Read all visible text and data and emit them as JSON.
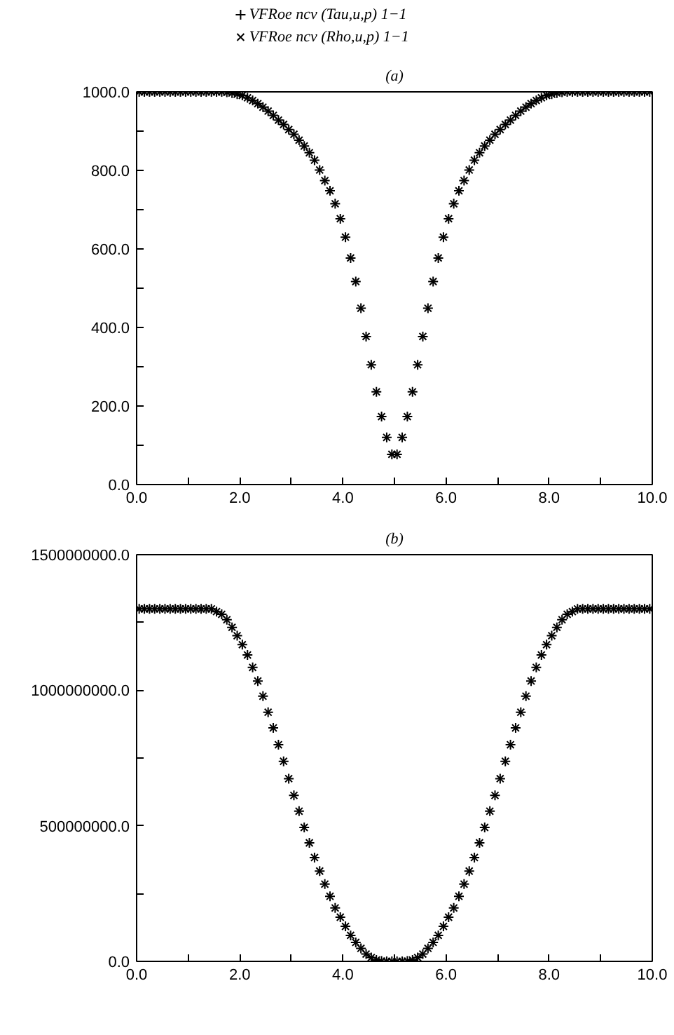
{
  "chart_data": [
    {
      "type": "scatter",
      "title": "(a)",
      "legend": "top left",
      "grid": false,
      "x": [
        0.05,
        0.15,
        0.25,
        0.35,
        0.45,
        0.55,
        0.65,
        0.75,
        0.85,
        0.95,
        1.05,
        1.15,
        1.25,
        1.35,
        1.45,
        1.55,
        1.65,
        1.75,
        1.85,
        1.95,
        2.05,
        2.15,
        2.25,
        2.35,
        2.45,
        2.55,
        2.65,
        2.75,
        2.85,
        2.95,
        3.05,
        3.15,
        3.25,
        3.35,
        3.45,
        3.55,
        3.65,
        3.75,
        3.85,
        3.95,
        4.05,
        4.15,
        4.25,
        4.35,
        4.45,
        4.55,
        4.65,
        4.75,
        4.85,
        4.95,
        5.05,
        5.15,
        5.25,
        5.35,
        5.45,
        5.55,
        5.65,
        5.75,
        5.85,
        5.95,
        6.05,
        6.15,
        6.25,
        6.35,
        6.45,
        6.55,
        6.65,
        6.75,
        6.85,
        6.95,
        7.05,
        7.15,
        7.25,
        7.35,
        7.45,
        7.55,
        7.65,
        7.75,
        7.85,
        7.95,
        8.05,
        8.15,
        8.25,
        8.35,
        8.45,
        8.55,
        8.65,
        8.75,
        8.85,
        8.95,
        9.05,
        9.15,
        9.25,
        9.35,
        9.45,
        9.55,
        9.65,
        9.75,
        9.85,
        9.95
      ],
      "xlim": [
        0,
        10
      ],
      "xticks": [
        {
          "value": 0,
          "label": "0.0"
        },
        {
          "value": 1,
          "label": null
        },
        {
          "value": 2,
          "label": "2.0"
        },
        {
          "value": 3,
          "label": null
        },
        {
          "value": 4,
          "label": "4.0"
        },
        {
          "value": 5,
          "label": null
        },
        {
          "value": 6,
          "label": "6.0"
        },
        {
          "value": 7,
          "label": null
        },
        {
          "value": 8,
          "label": "8.0"
        },
        {
          "value": 9,
          "label": null
        },
        {
          "value": 10,
          "label": "10.0"
        }
      ],
      "ylim": [
        0,
        1000
      ],
      "yticks": [
        {
          "value": 0,
          "label": "0.0"
        },
        {
          "value": 100,
          "label": null
        },
        {
          "value": 200,
          "label": "200.0"
        },
        {
          "value": 300,
          "label": null
        },
        {
          "value": 400,
          "label": "400.0"
        },
        {
          "value": 500,
          "label": null
        },
        {
          "value": 600,
          "label": "600.0"
        },
        {
          "value": 700,
          "label": null
        },
        {
          "value": 800,
          "label": "800.0"
        },
        {
          "value": 900,
          "label": null
        },
        {
          "value": 1000,
          "label": "1000.0"
        }
      ],
      "series": [
        {
          "name": "VFRoe ncv (Tau,u,p) 1−1",
          "color": "#000000",
          "marker": "cross",
          "values": [
            1000,
            1000,
            1000,
            1000,
            1000,
            1000,
            1000,
            1000,
            1000,
            1000,
            1000,
            1000,
            1000,
            1000,
            1000,
            1000,
            1000,
            999,
            997,
            994,
            991,
            985,
            978,
            970,
            961,
            951,
            940,
            928,
            917,
            904,
            892,
            877,
            862,
            845,
            826,
            801,
            774,
            748,
            715,
            677,
            630,
            577,
            517,
            449,
            377,
            305,
            236,
            173,
            120,
            77,
            77,
            120,
            173,
            236,
            305,
            377,
            449,
            517,
            577,
            630,
            677,
            715,
            748,
            774,
            801,
            826,
            845,
            862,
            877,
            892,
            904,
            917,
            928,
            940,
            951,
            961,
            970,
            978,
            985,
            991,
            994,
            997,
            999,
            1000,
            1000,
            1000,
            1000,
            1000,
            1000,
            1000,
            1000,
            1000,
            1000,
            1000,
            1000,
            1000,
            1000,
            1000,
            1000,
            1000
          ]
        },
        {
          "name": "VFRoe ncv (Rho,u,p) 1−1",
          "color": "#000000",
          "values": [
            1000,
            1000,
            1000,
            1000,
            1000,
            1000,
            1000,
            1000,
            1000,
            1000,
            1000,
            1000,
            1000,
            1000,
            1000,
            1000,
            1000,
            999,
            997,
            994,
            991,
            985,
            978,
            970,
            961,
            951,
            940,
            928,
            917,
            904,
            892,
            877,
            862,
            845,
            826,
            801,
            774,
            748,
            715,
            677,
            630,
            577,
            517,
            449,
            377,
            305,
            236,
            173,
            120,
            77,
            77,
            120,
            173,
            236,
            305,
            377,
            449,
            517,
            577,
            630,
            677,
            715,
            748,
            774,
            801,
            826,
            845,
            862,
            877,
            892,
            904,
            917,
            928,
            940,
            951,
            961,
            970,
            978,
            985,
            991,
            994,
            997,
            999,
            1000,
            1000,
            1000,
            1000,
            1000,
            1000,
            1000,
            1000,
            1000,
            1000,
            1000,
            1000,
            1000,
            1000,
            1000,
            1000,
            1000
          ]
        }
      ]
    },
    {
      "type": "scatter",
      "title": "(b)",
      "grid": false,
      "x": [
        0.05,
        0.15,
        0.25,
        0.35,
        0.45,
        0.55,
        0.65,
        0.75,
        0.85,
        0.95,
        1.05,
        1.15,
        1.25,
        1.35,
        1.45,
        1.55,
        1.65,
        1.75,
        1.85,
        1.95,
        2.05,
        2.15,
        2.25,
        2.35,
        2.45,
        2.55,
        2.65,
        2.75,
        2.85,
        2.95,
        3.05,
        3.15,
        3.25,
        3.35,
        3.45,
        3.55,
        3.65,
        3.75,
        3.85,
        3.95,
        4.05,
        4.15,
        4.25,
        4.35,
        4.45,
        4.55,
        4.65,
        4.75,
        4.85,
        4.95,
        5.05,
        5.15,
        5.25,
        5.35,
        5.45,
        5.55,
        5.65,
        5.75,
        5.85,
        5.95,
        6.05,
        6.15,
        6.25,
        6.35,
        6.45,
        6.55,
        6.65,
        6.75,
        6.85,
        6.95,
        7.05,
        7.15,
        7.25,
        7.35,
        7.45,
        7.55,
        7.65,
        7.75,
        7.85,
        7.95,
        8.05,
        8.15,
        8.25,
        8.35,
        8.45,
        8.55,
        8.65,
        8.75,
        8.85,
        8.95,
        9.05,
        9.15,
        9.25,
        9.35,
        9.45,
        9.55,
        9.65,
        9.75,
        9.85,
        9.95
      ],
      "xlim": [
        0,
        10
      ],
      "xticks": [
        {
          "value": 0,
          "label": "0.0"
        },
        {
          "value": 1,
          "label": null
        },
        {
          "value": 2,
          "label": "2.0"
        },
        {
          "value": 3,
          "label": null
        },
        {
          "value": 4,
          "label": "4.0"
        },
        {
          "value": 5,
          "label": null
        },
        {
          "value": 6,
          "label": "6.0"
        },
        {
          "value": 7,
          "label": null
        },
        {
          "value": 8,
          "label": "8.0"
        },
        {
          "value": 9,
          "label": null
        },
        {
          "value": 10,
          "label": "10.0"
        }
      ],
      "ylim": [
        0,
        1500000000
      ],
      "yticks": [
        {
          "value": 0,
          "label": "0.0"
        },
        {
          "value": 250000000,
          "label": null
        },
        {
          "value": 500000000,
          "label": "500000000.0"
        },
        {
          "value": 750000000,
          "label": null
        },
        {
          "value": 1000000000,
          "label": "1000000000.0"
        },
        {
          "value": 1250000000,
          "label": null
        },
        {
          "value": 1500000000,
          "label": "1500000000.0"
        }
      ],
      "series": [
        {
          "color": "#000000",
          "marker": "cross",
          "values": [
            1300000000,
            1300000000,
            1300000000,
            1300000000,
            1300000000,
            1300000000,
            1300000000,
            1300000000,
            1300000000,
            1300000000,
            1300000000,
            1300000000,
            1300000000,
            1300000000,
            1300000000,
            1290000000,
            1280000000,
            1260000000,
            1232000000,
            1201000000,
            1168000000,
            1130000000,
            1084000000,
            1034000000,
            978000000,
            919000000,
            861000000,
            799000000,
            738000000,
            674000000,
            612000000,
            554000000,
            494000000,
            437000000,
            383000000,
            333000000,
            285000000,
            240000000,
            197000000,
            163000000,
            129000000,
            96000000,
            70000000,
            48000000,
            27000000,
            14000000,
            5000000,
            1000000,
            0,
            0,
            0,
            0,
            1000000,
            5000000,
            14000000,
            27000000,
            48000000,
            70000000,
            96000000,
            129000000,
            163000000,
            197000000,
            240000000,
            285000000,
            333000000,
            383000000,
            437000000,
            494000000,
            554000000,
            612000000,
            674000000,
            738000000,
            799000000,
            861000000,
            919000000,
            978000000,
            1034000000,
            1084000000,
            1130000000,
            1168000000,
            1201000000,
            1232000000,
            1260000000,
            1280000000,
            1290000000,
            1300000000,
            1300000000,
            1300000000,
            1300000000,
            1300000000,
            1300000000,
            1300000000,
            1300000000,
            1300000000,
            1300000000,
            1300000000,
            1300000000,
            1300000000,
            1300000000,
            1300000000
          ]
        },
        {
          "color": "#000000",
          "values": [
            1300000000,
            1300000000,
            1300000000,
            1300000000,
            1300000000,
            1300000000,
            1300000000,
            1300000000,
            1300000000,
            1300000000,
            1300000000,
            1300000000,
            1300000000,
            1300000000,
            1300000000,
            1290000000,
            1280000000,
            1260000000,
            1232000000,
            1201000000,
            1168000000,
            1130000000,
            1084000000,
            1034000000,
            978000000,
            919000000,
            861000000,
            799000000,
            738000000,
            674000000,
            612000000,
            554000000,
            494000000,
            437000000,
            383000000,
            333000000,
            285000000,
            240000000,
            197000000,
            163000000,
            129000000,
            96000000,
            70000000,
            48000000,
            27000000,
            14000000,
            5000000,
            1000000,
            0,
            0,
            0,
            0,
            1000000,
            5000000,
            14000000,
            27000000,
            48000000,
            70000000,
            96000000,
            129000000,
            163000000,
            197000000,
            240000000,
            285000000,
            333000000,
            383000000,
            437000000,
            494000000,
            554000000,
            612000000,
            674000000,
            738000000,
            799000000,
            861000000,
            919000000,
            978000000,
            1034000000,
            1084000000,
            1130000000,
            1168000000,
            1201000000,
            1232000000,
            1260000000,
            1280000000,
            1290000000,
            1300000000,
            1300000000,
            1300000000,
            1300000000,
            1300000000,
            1300000000,
            1300000000,
            1300000000,
            1300000000,
            1300000000,
            1300000000,
            1300000000,
            1300000000,
            1300000000,
            1300000000
          ]
        }
      ]
    }
  ]
}
